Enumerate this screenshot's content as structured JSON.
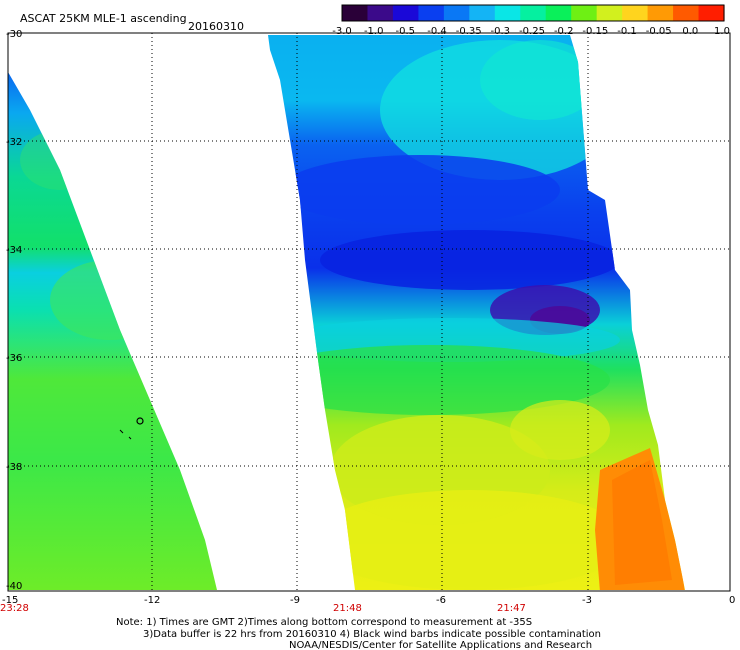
{
  "header": {
    "title": "ASCAT 25KM MLE-1 ascending",
    "date": "20160310"
  },
  "colorbar": {
    "labels": [
      "-3.0",
      "-1.0",
      "-0.5",
      "-0.4",
      "-0.35",
      "-0.3",
      "-0.25",
      "-0.2",
      "-0.15",
      "-0.1",
      "-0.05",
      "0.0",
      "1.0"
    ],
    "colors": [
      "#2a0038",
      "#3b0a8a",
      "#1a08d8",
      "#0a3ff0",
      "#0a78f5",
      "#14b4f5",
      "#0ae6e6",
      "#05f0a0",
      "#0af05a",
      "#6ef014",
      "#d2f01e",
      "#ffd41e",
      "#ff9a05",
      "#ff5a00",
      "#ff1e00"
    ]
  },
  "map": {
    "lat_labels": [
      "-30",
      "-32",
      "-34",
      "-36",
      "-38",
      "-40"
    ],
    "lon_labels": [
      "-15",
      "-12",
      "-9",
      "-6",
      "-3",
      "0"
    ],
    "time_labels": [
      "23:28",
      "21:48",
      "21:47"
    ]
  },
  "notes": {
    "line1": "Note: 1) Times are GMT 2)Times along bottom correspond to measurement at -35S",
    "line2": "3)Data buffer is 22 hrs from 20160310 4) Black wind barbs indicate possible contamination",
    "line3": "NOAA/NESDIS/Center for Satellite Applications and Research"
  },
  "colors": {
    "time_label": "#d00000",
    "frame": "#000000",
    "grid": "#000000"
  }
}
